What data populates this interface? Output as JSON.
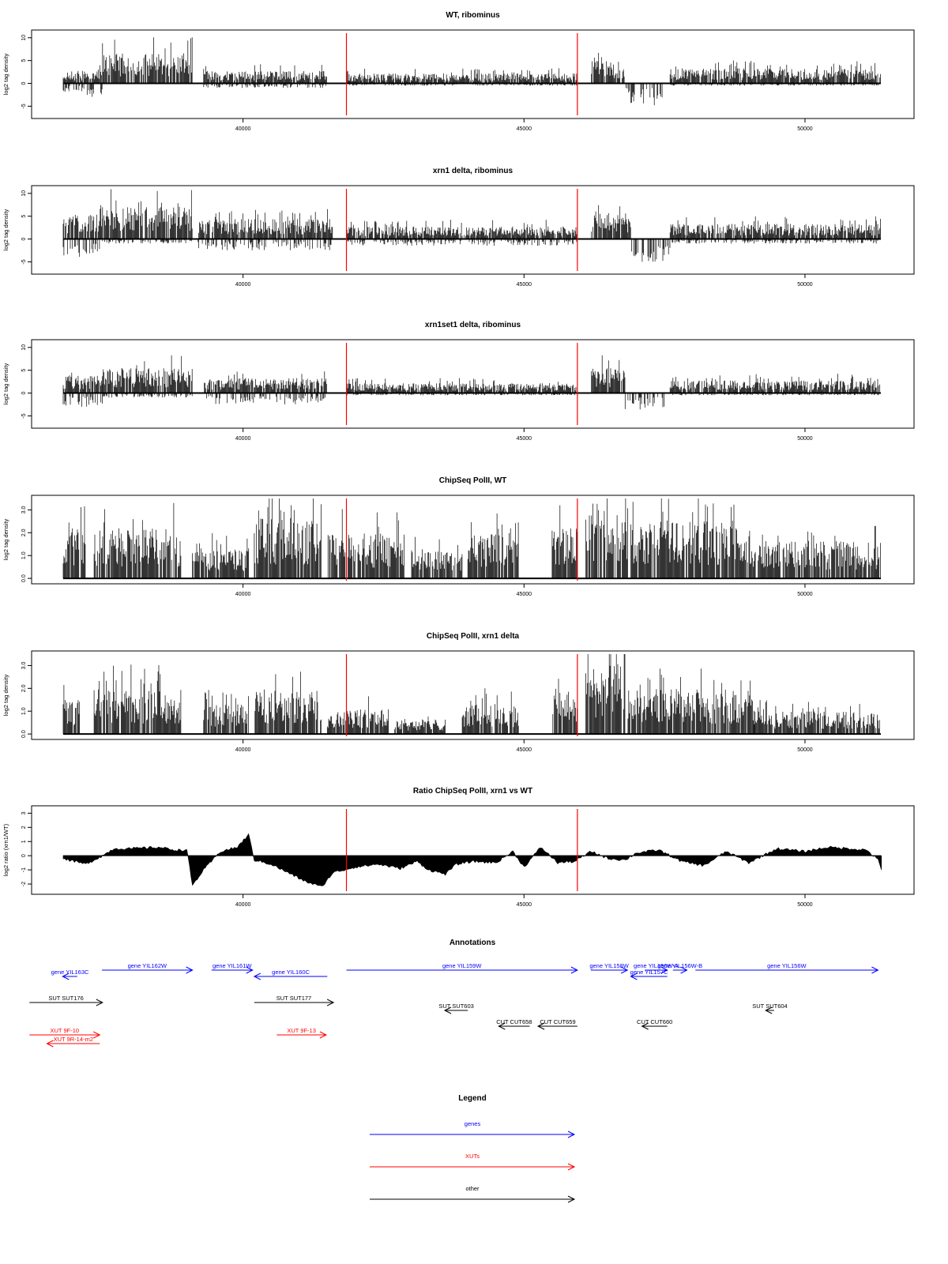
{
  "chart_data": [
    {
      "type": "bar",
      "title": "WT, ribominus",
      "ylabel": "log2 tag density",
      "ylim": [
        -7,
        11
      ],
      "yticks": [
        -5,
        0,
        5,
        10
      ],
      "xlim": [
        36400,
        51400
      ],
      "xticks": [
        40000,
        45000,
        50000
      ],
      "markers": [
        41840,
        45950
      ],
      "segments": [
        {
          "x": [
            36800,
            37200
          ],
          "pos": 2.5,
          "neg": -2
        },
        {
          "x": [
            37200,
            37500
          ],
          "pos": 2.5,
          "neg": -3
        },
        {
          "x": [
            37500,
            39100
          ],
          "pos": 6,
          "neg": 0
        },
        {
          "x": [
            39300,
            41500
          ],
          "pos": 2.5,
          "neg": -1
        },
        {
          "x": [
            41850,
            45950
          ],
          "pos": 2,
          "neg": -0.5
        },
        {
          "x": [
            46200,
            46800
          ],
          "pos": 4.5,
          "neg": 0
        },
        {
          "x": [
            46800,
            47500
          ],
          "pos": 0,
          "neg": -5
        },
        {
          "x": [
            47600,
            51350
          ],
          "pos": 3,
          "neg": -0.5
        }
      ]
    },
    {
      "type": "bar",
      "title": "xrn1 delta, ribominus",
      "ylabel": "log2 tag density",
      "ylim": [
        -7,
        11
      ],
      "yticks": [
        -5,
        0,
        5,
        10
      ],
      "xlim": [
        36400,
        51400
      ],
      "xticks": [
        40000,
        45000,
        50000
      ],
      "markers": [
        41840,
        45950
      ],
      "segments": [
        {
          "x": [
            36800,
            37500
          ],
          "pos": 5,
          "neg": -4
        },
        {
          "x": [
            37500,
            39100
          ],
          "pos": 6.5,
          "neg": -1
        },
        {
          "x": [
            39200,
            41600
          ],
          "pos": 4,
          "neg": -2.5
        },
        {
          "x": [
            41850,
            45950
          ],
          "pos": 2.5,
          "neg": -1.5
        },
        {
          "x": [
            46200,
            46900
          ],
          "pos": 5.5,
          "neg": 0
        },
        {
          "x": [
            46900,
            47600
          ],
          "pos": 0,
          "neg": -5
        },
        {
          "x": [
            47600,
            51350
          ],
          "pos": 3,
          "neg": -1
        }
      ]
    },
    {
      "type": "bar",
      "title": "xrn1set1 delta, ribominus",
      "ylabel": "log2 tag density",
      "ylim": [
        -7,
        11
      ],
      "yticks": [
        -5,
        0,
        5,
        10
      ],
      "xlim": [
        36400,
        51400
      ],
      "xticks": [
        40000,
        45000,
        50000
      ],
      "markers": [
        41840,
        45950
      ],
      "segments": [
        {
          "x": [
            36800,
            37500
          ],
          "pos": 3.5,
          "neg": -3
        },
        {
          "x": [
            37500,
            39100
          ],
          "pos": 5,
          "neg": -1
        },
        {
          "x": [
            39300,
            41500
          ],
          "pos": 3,
          "neg": -2.5
        },
        {
          "x": [
            41850,
            45950
          ],
          "pos": 2,
          "neg": -0.5
        },
        {
          "x": [
            46200,
            46800
          ],
          "pos": 5,
          "neg": 0
        },
        {
          "x": [
            46800,
            47500
          ],
          "pos": 0,
          "neg": -4
        },
        {
          "x": [
            47600,
            51350
          ],
          "pos": 2.5,
          "neg": -0.5
        }
      ]
    },
    {
      "type": "bar",
      "title": "ChipSeq PolII, WT",
      "ylabel": "log2 tag density",
      "ylim": [
        -0.1,
        3.5
      ],
      "yticks": [
        0,
        1,
        2,
        3
      ],
      "ytick_labels": [
        "0.0",
        "1.0",
        "2.0",
        "3.0"
      ],
      "xlim": [
        36400,
        51400
      ],
      "xticks": [
        40000,
        45000,
        50000
      ],
      "markers": [
        41840,
        45950
      ],
      "segments": [
        {
          "x": [
            36800,
            37200
          ],
          "pos": 2,
          "neg": 0
        },
        {
          "x": [
            37350,
            38900
          ],
          "pos": 2,
          "neg": 0
        },
        {
          "x": [
            39100,
            40100
          ],
          "pos": 1.2,
          "neg": 0
        },
        {
          "x": [
            40200,
            41400
          ],
          "pos": 2.4,
          "neg": 0
        },
        {
          "x": [
            41500,
            42900
          ],
          "pos": 1.8,
          "neg": 0
        },
        {
          "x": [
            43000,
            43900
          ],
          "pos": 1.2,
          "neg": 0
        },
        {
          "x": [
            44000,
            44900
          ],
          "pos": 1.8,
          "neg": 0
        },
        {
          "x": [
            45500,
            45950
          ],
          "pos": 2,
          "neg": 0
        },
        {
          "x": [
            46100,
            46850
          ],
          "pos": 3,
          "neg": 0
        },
        {
          "x": [
            46900,
            48800
          ],
          "pos": 2.3,
          "neg": 0
        },
        {
          "x": [
            48800,
            51350
          ],
          "pos": 1.5,
          "neg": 0
        }
      ]
    },
    {
      "type": "bar",
      "title": "ChipSeq PolII, xrn1 delta",
      "ylabel": "log2 tag density",
      "ylim": [
        -0.1,
        3.5
      ],
      "yticks": [
        0,
        1,
        2,
        3
      ],
      "ytick_labels": [
        "0.0",
        "1.0",
        "2.0",
        "3.0"
      ],
      "xlim": [
        36400,
        51400
      ],
      "xticks": [
        40000,
        45000,
        50000
      ],
      "markers": [
        41840,
        45950
      ],
      "segments": [
        {
          "x": [
            36800,
            37100
          ],
          "pos": 1.5,
          "neg": 0
        },
        {
          "x": [
            37350,
            38900
          ],
          "pos": 1.8,
          "neg": 0
        },
        {
          "x": [
            39300,
            40100
          ],
          "pos": 1.2,
          "neg": 0
        },
        {
          "x": [
            40200,
            41400
          ],
          "pos": 1.8,
          "neg": 0
        },
        {
          "x": [
            41500,
            42600
          ],
          "pos": 1,
          "neg": 0
        },
        {
          "x": [
            42700,
            43600
          ],
          "pos": 0.6,
          "neg": 0
        },
        {
          "x": [
            43900,
            44900
          ],
          "pos": 1.2,
          "neg": 0
        },
        {
          "x": [
            45500,
            45950
          ],
          "pos": 1.8,
          "neg": 0
        },
        {
          "x": [
            46100,
            46800
          ],
          "pos": 2.8,
          "neg": 0
        },
        {
          "x": [
            46850,
            49100
          ],
          "pos": 1.8,
          "neg": 0
        },
        {
          "x": [
            49100,
            51350
          ],
          "pos": 0.9,
          "neg": 0
        }
      ]
    },
    {
      "type": "area",
      "title": "Ratio ChipSeq PolII, xrn1 vs WT",
      "ylabel": "log2 ratio (xrn1/WT)",
      "ylim": [
        -2.5,
        3.3
      ],
      "yticks": [
        -2,
        -1,
        0,
        1,
        2,
        3
      ],
      "xlim": [
        36400,
        51400
      ],
      "xticks": [
        40000,
        45000,
        50000
      ],
      "markers": [
        41840,
        45950
      ],
      "x": [
        36800,
        37000,
        37200,
        37500,
        37700,
        38000,
        38500,
        38800,
        39000,
        39100,
        39300,
        39600,
        39900,
        40100,
        40200,
        40500,
        40800,
        41100,
        41400,
        41600,
        41800,
        42000,
        42400,
        42800,
        43100,
        43300,
        43600,
        43800,
        44100,
        44500,
        44800,
        45000,
        45300,
        45600,
        45900,
        46200,
        46500,
        46800,
        47000,
        47400,
        47800,
        48200,
        48600,
        49000,
        49500,
        50000,
        50400,
        50800,
        51100,
        51300,
        51360
      ],
      "values": [
        -0.2,
        -0.4,
        -0.6,
        0.0,
        0.5,
        0.5,
        0.6,
        0.4,
        0.4,
        -2.1,
        -1.0,
        0.3,
        0.6,
        1.5,
        -0.3,
        -0.6,
        -1.2,
        -1.8,
        -2.2,
        -1.2,
        -1.0,
        -0.8,
        -0.6,
        -0.9,
        -0.4,
        -1.0,
        -1.3,
        -0.6,
        -0.4,
        -0.5,
        0.3,
        -0.8,
        0.6,
        -0.5,
        -0.4,
        0.3,
        -0.2,
        -0.3,
        0.2,
        0.4,
        -0.4,
        -0.7,
        0.3,
        -0.5,
        0.5,
        0.3,
        0.6,
        0.5,
        0.4,
        -0.3,
        -1.0
      ]
    }
  ],
  "annotations": {
    "title": "Annotations",
    "colors": {
      "gene": "#0000ff",
      "xut": "#ff0000",
      "other": "#000000"
    },
    "items": [
      {
        "label": "gene YIL163C",
        "type": "gene",
        "start": 37050,
        "end": 36790,
        "lane": 1
      },
      {
        "label": "gene YIL162W",
        "type": "gene",
        "start": 37490,
        "end": 39100,
        "lane": 0
      },
      {
        "label": "gene YIL161W",
        "type": "gene",
        "start": 39440,
        "end": 40170,
        "lane": 0
      },
      {
        "label": "gene YIL160C",
        "type": "gene",
        "start": 41500,
        "end": 40200,
        "lane": 1
      },
      {
        "label": "gene YIL159W",
        "type": "gene",
        "start": 41840,
        "end": 45950,
        "lane": 0
      },
      {
        "label": "gene YIL158W",
        "type": "gene",
        "start": 46190,
        "end": 46840,
        "lane": 0
      },
      {
        "label": "gene YIL157C",
        "type": "gene",
        "start": 47550,
        "end": 46900,
        "lane": 1
      },
      {
        "label": "gene YIL156W-A",
        "type": "gene",
        "start": 47150,
        "end": 47550,
        "lane": 0
      },
      {
        "label": "gene YIL156W-B",
        "type": "gene",
        "start": 47650,
        "end": 47900,
        "lane": 0
      },
      {
        "label": "gene YIL156W",
        "type": "gene",
        "start": 48050,
        "end": 51300,
        "lane": 0
      },
      {
        "label": "SUT SUT176",
        "type": "other",
        "start": 36200,
        "end": 37500,
        "lane": 2
      },
      {
        "label": "SUT SUT177",
        "type": "other",
        "start": 40200,
        "end": 41610,
        "lane": 2
      },
      {
        "label": "SUT SUT603",
        "type": "other",
        "start": 44000,
        "end": 43590,
        "lane": 3
      },
      {
        "label": "CUT CUT658",
        "type": "other",
        "start": 45100,
        "end": 44550,
        "lane": 4
      },
      {
        "label": "CUT CUT659",
        "type": "other",
        "start": 45950,
        "end": 45250,
        "lane": 4
      },
      {
        "label": "CUT CUT660",
        "type": "other",
        "start": 47550,
        "end": 47100,
        "lane": 4
      },
      {
        "label": "SUT SUT604",
        "type": "other",
        "start": 49450,
        "end": 49300,
        "lane": 3
      },
      {
        "label": "XUT 9F-10",
        "type": "xut",
        "start": 36200,
        "end": 37450,
        "lane": 5
      },
      {
        "label": "XUT 9R-14-m2",
        "type": "xut",
        "start": 37450,
        "end": 36510,
        "lane": 6
      },
      {
        "label": "XUT 9F-13",
        "type": "xut",
        "start": 40600,
        "end": 41480,
        "lane": 5
      }
    ]
  },
  "legend": {
    "title": "Legend",
    "items": [
      {
        "label": "genes",
        "color": "#0000ff"
      },
      {
        "label": "XUTs",
        "color": "#ff0000"
      },
      {
        "label": "other",
        "color": "#000000"
      }
    ]
  }
}
